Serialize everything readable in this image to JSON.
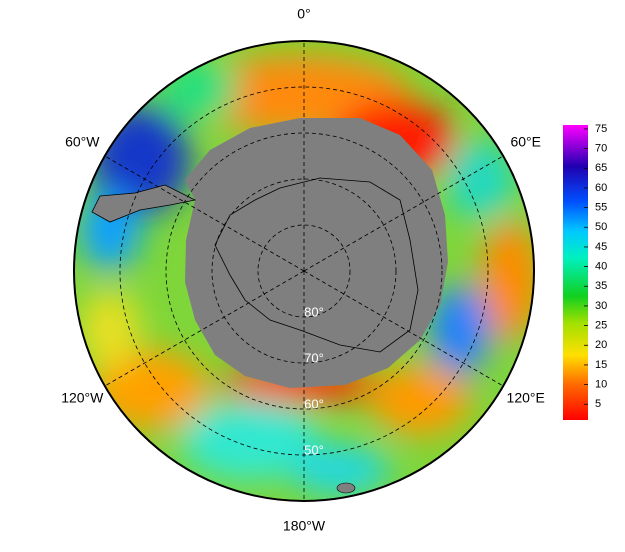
{
  "map": {
    "meridians": [
      {
        "value": 0,
        "label": "0°"
      },
      {
        "value": -60,
        "label": "60°W"
      },
      {
        "value": 60,
        "label": "60°E"
      },
      {
        "value": -120,
        "label": "120°W"
      },
      {
        "value": 120,
        "label": "120°E"
      },
      {
        "value": 180,
        "label": "180°W"
      }
    ],
    "parallels": [
      {
        "value": 80,
        "label": "80°"
      },
      {
        "value": 70,
        "label": "70°"
      },
      {
        "value": 60,
        "label": "60°"
      },
      {
        "value": 50,
        "label": "50°"
      }
    ],
    "colorbar": {
      "range": [
        1,
        76
      ],
      "ticks": [
        5,
        10,
        15,
        20,
        25,
        30,
        35,
        40,
        45,
        50,
        55,
        60,
        65,
        70,
        75
      ]
    }
  }
}
